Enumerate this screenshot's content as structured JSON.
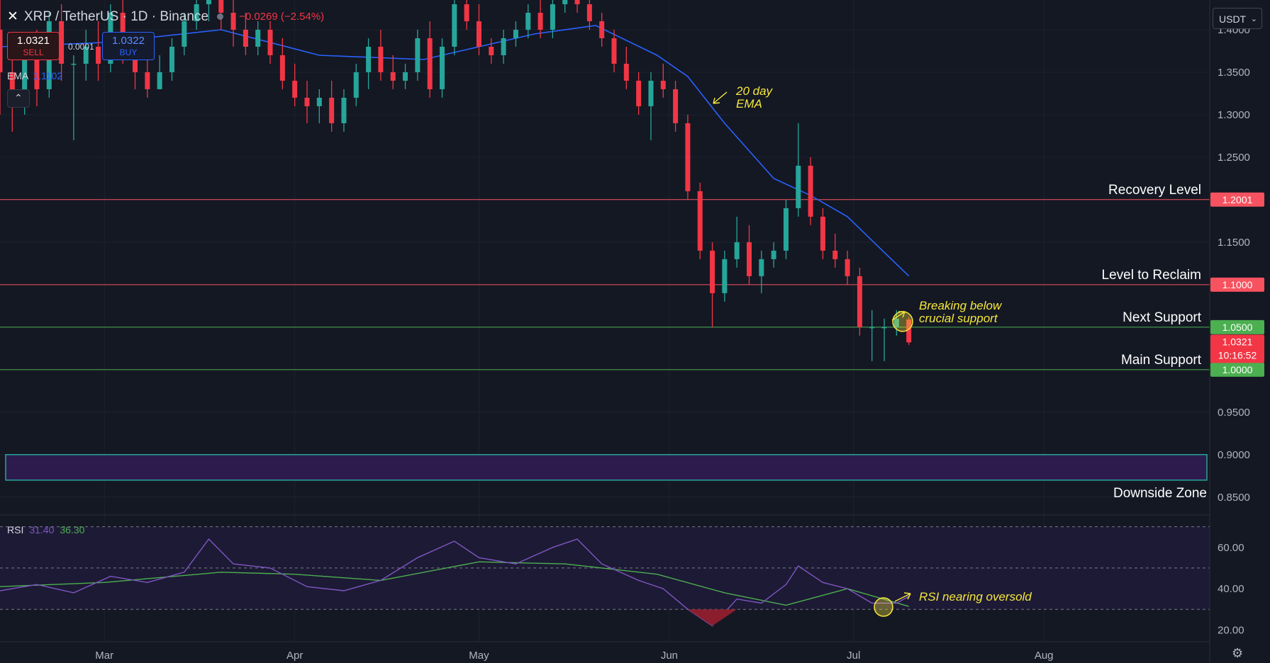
{
  "header": {
    "symbol": "XRP / TetherUS · 1D · Binance",
    "change": "−0.0269 (−2.54%)",
    "sell_price": "1.0321",
    "sell_label": "SELL",
    "spread": "0.0001",
    "buy_price": "1.0322",
    "buy_label": "BUY",
    "ema_label": "EMA",
    "ema_value": "1.1102",
    "collapse_glyph": "⌃",
    "currency": "USDT",
    "currency_chev": "⌄"
  },
  "rsi_legend": {
    "label": "RSI",
    "value1": "31.40",
    "value2": "36.30"
  },
  "colors": {
    "bg": "#141823",
    "up": "#26a69a",
    "down": "#f23645",
    "ema": "#2962ff",
    "rsi": "#7e57c2",
    "rsi_ma": "#4caf50",
    "resistance": "#f7525f",
    "support": "#4caf50",
    "annotation": "#f5e63d",
    "zone_fill": "#2d1b4e",
    "zone_border": "#26a69a"
  },
  "icons": {
    "close": "close-icon",
    "settings": "gear-icon",
    "collapse": "chevron-up-icon"
  },
  "chart_data": {
    "type": "candlestick",
    "price_axis_ticks": [
      "1.4000",
      "1.3500",
      "1.3000",
      "1.2500",
      "1.2000",
      "1.1500",
      "1.1000",
      "1.0500",
      "1.0000",
      "0.9500",
      "0.9000",
      "0.8500"
    ],
    "rsi_axis_ticks": [
      "60.00",
      "40.00",
      "20.00"
    ],
    "time_axis_ticks": [
      "Mar",
      "Apr",
      "May",
      "Jun",
      "Jul",
      "Aug"
    ],
    "ylim": [
      0.829,
      1.435
    ],
    "rsi_ylim": [
      14.3,
      75.7
    ],
    "x_start": "2025-02-12",
    "x_end": "2025-08-28",
    "ohlc": [
      {
        "d": "2025-02-12",
        "o": 1.4,
        "h": 1.44,
        "l": 1.3,
        "c": 1.35
      },
      {
        "d": "2025-02-14",
        "o": 1.35,
        "h": 1.38,
        "l": 1.28,
        "c": 1.32
      },
      {
        "d": "2025-02-16",
        "o": 1.32,
        "h": 1.39,
        "l": 1.3,
        "c": 1.37
      },
      {
        "d": "2025-02-18",
        "o": 1.37,
        "h": 1.4,
        "l": 1.31,
        "c": 1.33
      },
      {
        "d": "2025-02-20",
        "o": 1.33,
        "h": 1.42,
        "l": 1.32,
        "c": 1.41
      },
      {
        "d": "2025-02-22",
        "o": 1.41,
        "h": 1.43,
        "l": 1.34,
        "c": 1.36
      },
      {
        "d": "2025-02-24",
        "o": 1.36,
        "h": 1.37,
        "l": 1.27,
        "c": 1.36
      },
      {
        "d": "2025-02-26",
        "o": 1.36,
        "h": 1.4,
        "l": 1.34,
        "c": 1.38
      },
      {
        "d": "2025-02-28",
        "o": 1.38,
        "h": 1.41,
        "l": 1.34,
        "c": 1.36
      },
      {
        "d": "2025-03-02",
        "o": 1.36,
        "h": 1.43,
        "l": 1.35,
        "c": 1.42
      },
      {
        "d": "2025-03-04",
        "o": 1.42,
        "h": 1.44,
        "l": 1.36,
        "c": 1.37
      },
      {
        "d": "2025-03-06",
        "o": 1.37,
        "h": 1.38,
        "l": 1.33,
        "c": 1.35
      },
      {
        "d": "2025-03-08",
        "o": 1.35,
        "h": 1.37,
        "l": 1.32,
        "c": 1.33
      },
      {
        "d": "2025-03-10",
        "o": 1.33,
        "h": 1.37,
        "l": 1.33,
        "c": 1.35
      },
      {
        "d": "2025-03-12",
        "o": 1.35,
        "h": 1.39,
        "l": 1.34,
        "c": 1.38
      },
      {
        "d": "2025-03-14",
        "o": 1.38,
        "h": 1.42,
        "l": 1.37,
        "c": 1.41
      },
      {
        "d": "2025-03-16",
        "o": 1.41,
        "h": 1.44,
        "l": 1.4,
        "c": 1.43
      },
      {
        "d": "2025-03-18",
        "o": 1.43,
        "h": 1.445,
        "l": 1.41,
        "c": 1.44
      },
      {
        "d": "2025-03-20",
        "o": 1.44,
        "h": 1.445,
        "l": 1.4,
        "c": 1.42
      },
      {
        "d": "2025-03-22",
        "o": 1.42,
        "h": 1.44,
        "l": 1.38,
        "c": 1.4
      },
      {
        "d": "2025-03-24",
        "o": 1.4,
        "h": 1.42,
        "l": 1.37,
        "c": 1.38
      },
      {
        "d": "2025-03-26",
        "o": 1.38,
        "h": 1.41,
        "l": 1.37,
        "c": 1.4
      },
      {
        "d": "2025-03-28",
        "o": 1.4,
        "h": 1.41,
        "l": 1.36,
        "c": 1.37
      },
      {
        "d": "2025-03-30",
        "o": 1.37,
        "h": 1.39,
        "l": 1.33,
        "c": 1.34
      },
      {
        "d": "2025-04-01",
        "o": 1.34,
        "h": 1.36,
        "l": 1.31,
        "c": 1.32
      },
      {
        "d": "2025-04-03",
        "o": 1.32,
        "h": 1.34,
        "l": 1.29,
        "c": 1.31
      },
      {
        "d": "2025-04-05",
        "o": 1.31,
        "h": 1.33,
        "l": 1.29,
        "c": 1.32
      },
      {
        "d": "2025-04-07",
        "o": 1.32,
        "h": 1.34,
        "l": 1.28,
        "c": 1.29
      },
      {
        "d": "2025-04-09",
        "o": 1.29,
        "h": 1.33,
        "l": 1.28,
        "c": 1.32
      },
      {
        "d": "2025-04-11",
        "o": 1.32,
        "h": 1.36,
        "l": 1.31,
        "c": 1.35
      },
      {
        "d": "2025-04-13",
        "o": 1.35,
        "h": 1.39,
        "l": 1.33,
        "c": 1.38
      },
      {
        "d": "2025-04-15",
        "o": 1.38,
        "h": 1.4,
        "l": 1.34,
        "c": 1.35
      },
      {
        "d": "2025-04-17",
        "o": 1.35,
        "h": 1.37,
        "l": 1.33,
        "c": 1.34
      },
      {
        "d": "2025-04-19",
        "o": 1.34,
        "h": 1.36,
        "l": 1.33,
        "c": 1.35
      },
      {
        "d": "2025-04-21",
        "o": 1.35,
        "h": 1.4,
        "l": 1.34,
        "c": 1.39
      },
      {
        "d": "2025-04-23",
        "o": 1.39,
        "h": 1.41,
        "l": 1.32,
        "c": 1.33
      },
      {
        "d": "2025-04-25",
        "o": 1.33,
        "h": 1.39,
        "l": 1.32,
        "c": 1.38
      },
      {
        "d": "2025-04-27",
        "o": 1.38,
        "h": 1.44,
        "l": 1.37,
        "c": 1.43
      },
      {
        "d": "2025-04-29",
        "o": 1.43,
        "h": 1.445,
        "l": 1.4,
        "c": 1.41
      },
      {
        "d": "2025-05-01",
        "o": 1.41,
        "h": 1.43,
        "l": 1.37,
        "c": 1.38
      },
      {
        "d": "2025-05-03",
        "o": 1.38,
        "h": 1.39,
        "l": 1.36,
        "c": 1.37
      },
      {
        "d": "2025-05-05",
        "o": 1.37,
        "h": 1.4,
        "l": 1.36,
        "c": 1.39
      },
      {
        "d": "2025-05-07",
        "o": 1.39,
        "h": 1.41,
        "l": 1.38,
        "c": 1.4
      },
      {
        "d": "2025-05-09",
        "o": 1.4,
        "h": 1.43,
        "l": 1.39,
        "c": 1.42
      },
      {
        "d": "2025-05-11",
        "o": 1.42,
        "h": 1.44,
        "l": 1.39,
        "c": 1.4
      },
      {
        "d": "2025-05-13",
        "o": 1.4,
        "h": 1.44,
        "l": 1.39,
        "c": 1.43
      },
      {
        "d": "2025-05-15",
        "o": 1.43,
        "h": 1.445,
        "l": 1.42,
        "c": 1.44
      },
      {
        "d": "2025-05-17",
        "o": 1.44,
        "h": 1.445,
        "l": 1.42,
        "c": 1.43
      },
      {
        "d": "2025-05-19",
        "o": 1.43,
        "h": 1.44,
        "l": 1.4,
        "c": 1.41
      },
      {
        "d": "2025-05-21",
        "o": 1.41,
        "h": 1.42,
        "l": 1.38,
        "c": 1.39
      },
      {
        "d": "2025-05-23",
        "o": 1.39,
        "h": 1.4,
        "l": 1.35,
        "c": 1.36
      },
      {
        "d": "2025-05-25",
        "o": 1.36,
        "h": 1.38,
        "l": 1.33,
        "c": 1.34
      },
      {
        "d": "2025-05-27",
        "o": 1.34,
        "h": 1.35,
        "l": 1.3,
        "c": 1.31
      },
      {
        "d": "2025-05-29",
        "o": 1.31,
        "h": 1.35,
        "l": 1.27,
        "c": 1.34
      },
      {
        "d": "2025-05-31",
        "o": 1.34,
        "h": 1.36,
        "l": 1.32,
        "c": 1.33
      },
      {
        "d": "2025-06-02",
        "o": 1.33,
        "h": 1.34,
        "l": 1.28,
        "c": 1.29
      },
      {
        "d": "2025-06-04",
        "o": 1.29,
        "h": 1.3,
        "l": 1.2,
        "c": 1.21
      },
      {
        "d": "2025-06-06",
        "o": 1.21,
        "h": 1.22,
        "l": 1.13,
        "c": 1.14
      },
      {
        "d": "2025-06-08",
        "o": 1.14,
        "h": 1.15,
        "l": 1.05,
        "c": 1.09
      },
      {
        "d": "2025-06-10",
        "o": 1.09,
        "h": 1.14,
        "l": 1.08,
        "c": 1.13
      },
      {
        "d": "2025-06-12",
        "o": 1.13,
        "h": 1.18,
        "l": 1.12,
        "c": 1.15
      },
      {
        "d": "2025-06-14",
        "o": 1.15,
        "h": 1.17,
        "l": 1.1,
        "c": 1.11
      },
      {
        "d": "2025-06-16",
        "o": 1.11,
        "h": 1.14,
        "l": 1.09,
        "c": 1.13
      },
      {
        "d": "2025-06-18",
        "o": 1.13,
        "h": 1.15,
        "l": 1.12,
        "c": 1.14
      },
      {
        "d": "2025-06-20",
        "o": 1.14,
        "h": 1.2,
        "l": 1.13,
        "c": 1.19
      },
      {
        "d": "2025-06-22",
        "o": 1.19,
        "h": 1.29,
        "l": 1.18,
        "c": 1.24
      },
      {
        "d": "2025-06-24",
        "o": 1.24,
        "h": 1.25,
        "l": 1.17,
        "c": 1.18
      },
      {
        "d": "2025-06-26",
        "o": 1.18,
        "h": 1.19,
        "l": 1.13,
        "c": 1.14
      },
      {
        "d": "2025-06-28",
        "o": 1.14,
        "h": 1.16,
        "l": 1.12,
        "c": 1.13
      },
      {
        "d": "2025-06-30",
        "o": 1.13,
        "h": 1.14,
        "l": 1.1,
        "c": 1.11
      },
      {
        "d": "2025-07-02",
        "o": 1.11,
        "h": 1.12,
        "l": 1.04,
        "c": 1.05
      },
      {
        "d": "2025-07-04",
        "o": 1.05,
        "h": 1.07,
        "l": 1.01,
        "c": 1.05
      },
      {
        "d": "2025-07-06",
        "o": 1.05,
        "h": 1.06,
        "l": 1.01,
        "c": 1.05
      },
      {
        "d": "2025-07-08",
        "o": 1.05,
        "h": 1.07,
        "l": 1.04,
        "c": 1.06
      },
      {
        "d": "2025-07-10",
        "o": 1.059,
        "h": 1.062,
        "l": 1.029,
        "c": 1.0321
      }
    ],
    "ema20": [
      {
        "d": "2025-02-12",
        "v": 1.38
      },
      {
        "d": "2025-03-01",
        "v": 1.385
      },
      {
        "d": "2025-03-20",
        "v": 1.4
      },
      {
        "d": "2025-04-05",
        "v": 1.37
      },
      {
        "d": "2025-04-22",
        "v": 1.365
      },
      {
        "d": "2025-05-10",
        "v": 1.395
      },
      {
        "d": "2025-05-20",
        "v": 1.405
      },
      {
        "d": "2025-05-30",
        "v": 1.37
      },
      {
        "d": "2025-06-04",
        "v": 1.345
      },
      {
        "d": "2025-06-10",
        "v": 1.29
      },
      {
        "d": "2025-06-18",
        "v": 1.225
      },
      {
        "d": "2025-06-24",
        "v": 1.205
      },
      {
        "d": "2025-06-30",
        "v": 1.18
      },
      {
        "d": "2025-07-05",
        "v": 1.145
      },
      {
        "d": "2025-07-10",
        "v": 1.1102
      }
    ],
    "rsi": [
      {
        "d": "2025-02-12",
        "v": 39
      },
      {
        "d": "2025-02-18",
        "v": 42
      },
      {
        "d": "2025-02-24",
        "v": 38
      },
      {
        "d": "2025-03-02",
        "v": 46
      },
      {
        "d": "2025-03-08",
        "v": 43
      },
      {
        "d": "2025-03-14",
        "v": 48
      },
      {
        "d": "2025-03-18",
        "v": 64
      },
      {
        "d": "2025-03-22",
        "v": 52
      },
      {
        "d": "2025-03-28",
        "v": 50
      },
      {
        "d": "2025-04-03",
        "v": 41
      },
      {
        "d": "2025-04-09",
        "v": 39
      },
      {
        "d": "2025-04-15",
        "v": 44
      },
      {
        "d": "2025-04-21",
        "v": 55
      },
      {
        "d": "2025-04-27",
        "v": 63
      },
      {
        "d": "2025-05-01",
        "v": 55
      },
      {
        "d": "2025-05-07",
        "v": 52
      },
      {
        "d": "2025-05-13",
        "v": 60
      },
      {
        "d": "2025-05-17",
        "v": 64
      },
      {
        "d": "2025-05-21",
        "v": 52
      },
      {
        "d": "2025-05-27",
        "v": 44
      },
      {
        "d": "2025-05-31",
        "v": 40
      },
      {
        "d": "2025-06-04",
        "v": 30
      },
      {
        "d": "2025-06-08",
        "v": 22
      },
      {
        "d": "2025-06-12",
        "v": 35
      },
      {
        "d": "2025-06-16",
        "v": 33
      },
      {
        "d": "2025-06-20",
        "v": 42
      },
      {
        "d": "2025-06-22",
        "v": 51
      },
      {
        "d": "2025-06-26",
        "v": 43
      },
      {
        "d": "2025-06-30",
        "v": 40
      },
      {
        "d": "2025-07-04",
        "v": 33
      },
      {
        "d": "2025-07-08",
        "v": 33
      },
      {
        "d": "2025-07-10",
        "v": 36.3
      }
    ],
    "rsi_ma": [
      {
        "d": "2025-02-12",
        "v": 41
      },
      {
        "d": "2025-03-01",
        "v": 43
      },
      {
        "d": "2025-03-20",
        "v": 48
      },
      {
        "d": "2025-04-01",
        "v": 47
      },
      {
        "d": "2025-04-15",
        "v": 44
      },
      {
        "d": "2025-05-01",
        "v": 53
      },
      {
        "d": "2025-05-15",
        "v": 52
      },
      {
        "d": "2025-05-30",
        "v": 47
      },
      {
        "d": "2025-06-10",
        "v": 38
      },
      {
        "d": "2025-06-20",
        "v": 32
      },
      {
        "d": "2025-06-30",
        "v": 40
      },
      {
        "d": "2025-07-10",
        "v": 31.4
      }
    ],
    "levels": [
      {
        "label": "Recovery Level",
        "tag": "1.2001",
        "value": 1.2001,
        "kind": "resistance"
      },
      {
        "label": "Level to Reclaim",
        "tag": "1.1000",
        "value": 1.1,
        "kind": "resistance"
      },
      {
        "label": "Next Support",
        "tag": "1.0500",
        "value": 1.05,
        "kind": "support"
      },
      {
        "label": "Main Support",
        "tag": "1.0000",
        "value": 1.0,
        "kind": "support"
      }
    ],
    "current_price": {
      "value": 1.0321,
      "label": "1.0321",
      "countdown": "10:16:52"
    },
    "downside_zone": {
      "label": "Downside Zone",
      "top": 0.9,
      "bottom": 0.87
    },
    "annotations": {
      "ema_note": [
        "20 day",
        "EMA"
      ],
      "break_note": [
        "Breaking below",
        "crucial support"
      ],
      "rsi_note": "RSI nearing oversold"
    }
  }
}
